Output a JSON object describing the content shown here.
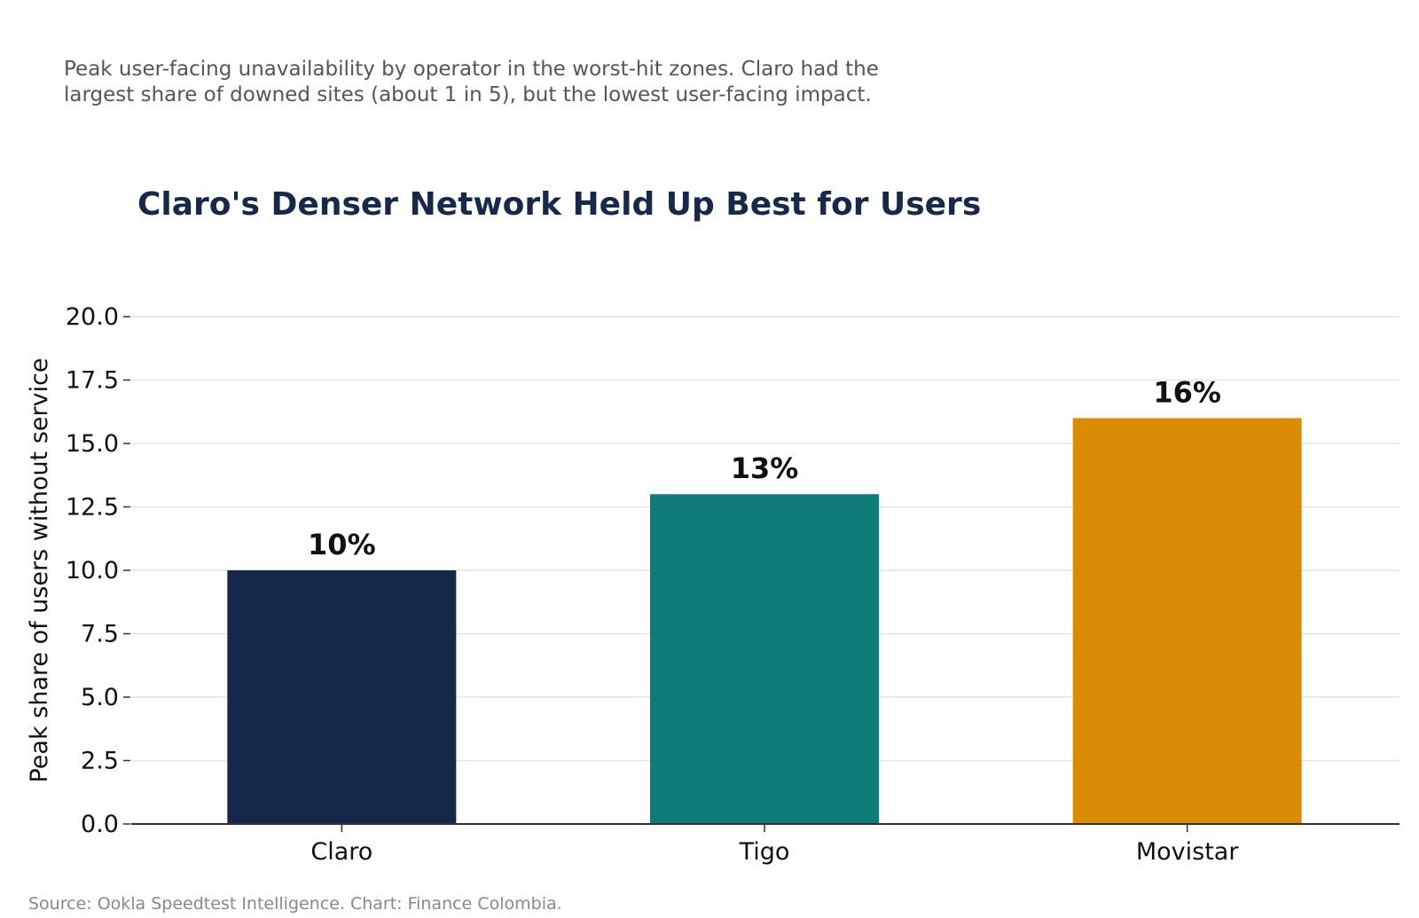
{
  "subtitle_lines": [
    "Peak user-facing unavailability by operator in the worst-hit zones. Claro had the",
    "largest share of downed sites (about 1 in 5), but the lowest user-facing impact."
  ],
  "source": "Source: Ookla Speedtest Intelligence. Chart: Finance Colombia.",
  "chart_data": {
    "type": "bar",
    "title": "Claro's Denser Network Held Up Best for Users",
    "xlabel": "",
    "ylabel": "Peak share of users without service",
    "categories": [
      "Claro",
      "Tigo",
      "Movistar"
    ],
    "values": [
      10,
      13,
      16
    ],
    "value_labels": [
      "10%",
      "13%",
      "16%"
    ],
    "colors": [
      "#16284a",
      "#107c7a",
      "#da8c05"
    ],
    "ylim": [
      0,
      20
    ],
    "yticks": [
      0,
      2.5,
      5,
      7.5,
      10,
      12.5,
      15,
      17.5,
      20
    ],
    "ytick_labels": [
      "0.0",
      "2.5",
      "5.0",
      "7.5",
      "10.0",
      "12.5",
      "15.0",
      "17.5",
      "20.0"
    ],
    "grid": true,
    "legend": false
  }
}
